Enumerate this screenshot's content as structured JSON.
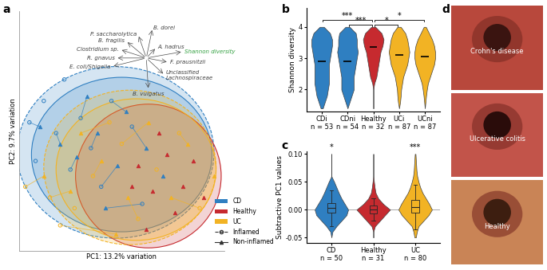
{
  "chart_data": [
    {
      "type": "scatter",
      "panel": "a",
      "x_label": "PC1: 13.2% variation",
      "y_label": "PC2: 9.7% variation",
      "xlim": [
        0,
        100
      ],
      "ylim": [
        0,
        112
      ],
      "xticks": [],
      "yticks": [],
      "tick_labels": false,
      "legend": "lower right",
      "states": [
        {
          "name": "Inflamed",
          "line_style": "dashed",
          "marker": "open circle"
        },
        {
          "name": "Non-inflamed",
          "line_style": "solid",
          "marker": "triangle"
        }
      ],
      "series": [
        {
          "name": "CD",
          "color": "#2f7fc1",
          "points": {
            "Inflamed": [
              [
                5,
                60
              ],
              [
                8,
                42
              ],
              [
                12,
                70
              ],
              [
                18,
                55
              ],
              [
                25,
                38
              ],
              [
                30,
                62
              ],
              [
                35,
                48
              ],
              [
                40,
                30
              ],
              [
                22,
                80
              ],
              [
                45,
                70
              ],
              [
                55,
                58
              ],
              [
                60,
                22
              ]
            ],
            "Non-inflamed": [
              [
                10,
                58
              ],
              [
                20,
                50
              ],
              [
                28,
                44
              ],
              [
                38,
                55
              ],
              [
                48,
                40
              ],
              [
                52,
                65
              ],
              [
                62,
                48
              ],
              [
                70,
                35
              ],
              [
                42,
                20
              ],
              [
                33,
                72
              ]
            ]
          },
          "links": [
            [
              0,
              0
            ],
            [
              3,
              1
            ],
            [
              4,
              2
            ],
            [
              6,
              3
            ],
            [
              7,
              4
            ],
            [
              9,
              5
            ],
            [
              10,
              6
            ],
            [
              11,
              8
            ],
            [
              5,
              9
            ]
          ],
          "ellipses": [
            {
              "state": "Inflamed",
              "center": [
                47,
                46
              ],
              "width": 96,
              "height": 80
            },
            {
              "state": "Non-inflamed",
              "center": [
                50,
                45
              ],
              "width": 88,
              "height": 72
            }
          ]
        },
        {
          "name": "Healthy",
          "color": "#c62a2f",
          "points": {
            "Non-inflamed": [
              [
                58,
                40
              ],
              [
                65,
                28
              ],
              [
                72,
                45
              ],
              [
                80,
                30
              ],
              [
                68,
                55
              ],
              [
                76,
                18
              ],
              [
                85,
                42
              ],
              [
                62,
                10
              ],
              [
                90,
                25
              ],
              [
                55,
                30
              ]
            ]
          },
          "ellipses": [
            {
              "state": "Non-inflamed",
              "center": [
                63,
                35
              ],
              "width": 71,
              "height": 67
            }
          ]
        },
        {
          "name": "UC",
          "color": "#f2b324",
          "points": {
            "Inflamed": [
              [
                3,
                30
              ],
              [
                15,
                25
              ],
              [
                27,
                20
              ],
              [
                36,
                35
              ],
              [
                50,
                50
              ],
              [
                58,
                15
              ],
              [
                67,
                38
              ],
              [
                78,
                55
              ],
              [
                88,
                20
              ],
              [
                44,
                60
              ],
              [
                20,
                12
              ]
            ],
            "Non-inflamed": [
              [
                12,
                35
              ],
              [
                25,
                28
              ],
              [
                40,
                42
              ],
              [
                53,
                25
              ],
              [
                63,
                60
              ],
              [
                74,
                25
              ],
              [
                82,
                50
              ],
              [
                47,
                8
              ],
              [
                95,
                35
              ],
              [
                30,
                55
              ]
            ]
          },
          "links": [
            [
              0,
              0
            ],
            [
              1,
              1
            ],
            [
              3,
              2
            ],
            [
              5,
              3
            ],
            [
              4,
              4
            ],
            [
              8,
              5
            ],
            [
              7,
              6
            ],
            [
              10,
              7
            ],
            [
              9,
              9
            ]
          ],
          "ellipses": [
            {
              "state": "Inflamed",
              "center": [
                54,
                39
              ],
              "width": 84,
              "height": 72
            },
            {
              "state": "Non-inflamed",
              "center": [
                57,
                38
              ],
              "width": 78,
              "height": 66
            }
          ]
        }
      ],
      "loading_origin": [
        62,
        90
      ],
      "loadings": [
        {
          "name": "B. dorei",
          "x": 3,
          "y": 14
        },
        {
          "name": "P. saccharolytica",
          "x": -4,
          "y": 11
        },
        {
          "name": "B. fragilis",
          "x": -10,
          "y": 8
        },
        {
          "name": "Clostridium sp.",
          "x": -13,
          "y": 4
        },
        {
          "name": "R. gnavus",
          "x": -15,
          "y": 0
        },
        {
          "name": "E. coli/Shigella",
          "x": -17,
          "y": -4
        },
        {
          "name": "A. hadrus",
          "x": 5,
          "y": 5
        },
        {
          "name": "Shannon diversity",
          "x": 18,
          "y": 3,
          "color": "#2e9e3c"
        },
        {
          "name": "F. prausnitzii",
          "x": 11,
          "y": -2
        },
        {
          "name": "Unclassified\nLachnospiraceae",
          "x": 9,
          "y": -8
        },
        {
          "name": "B. vulgatus",
          "x": 1,
          "y": -15
        }
      ]
    },
    {
      "type": "violin",
      "panel": "b",
      "y_label": "Shannon diversity",
      "categories": [
        "CDi\nn = 53",
        "CDni\nn = 54",
        "Healthy\nn = 32",
        "UCi\nn = 87",
        "UCni\nn = 87"
      ],
      "colors": [
        "#2f7fc1",
        "#2f7fc1",
        "#c62a2f",
        "#f2b324",
        "#f2b324"
      ],
      "ylim": [
        1.3,
        4.6
      ],
      "yticks": [
        2,
        3,
        4
      ],
      "density_y": [
        1.4,
        1.6,
        1.8,
        2.0,
        2.2,
        2.4,
        2.6,
        2.8,
        3.0,
        3.2,
        3.4,
        3.6,
        3.8,
        4.0
      ],
      "density": [
        [
          0.05,
          0.15,
          0.25,
          0.3,
          0.35,
          0.35,
          0.35,
          0.35,
          0.4,
          0.45,
          0.5,
          0.5,
          0.4,
          0.1
        ],
        [
          0,
          0.1,
          0.2,
          0.3,
          0.3,
          0.3,
          0.35,
          0.4,
          0.45,
          0.5,
          0.45,
          0.45,
          0.4,
          0.1
        ],
        [
          0,
          0,
          0,
          0,
          0.05,
          0.15,
          0.2,
          0.25,
          0.3,
          0.35,
          0.45,
          0.5,
          0.4,
          0.1
        ],
        [
          0,
          0.05,
          0.08,
          0.1,
          0.15,
          0.2,
          0.3,
          0.4,
          0.45,
          0.5,
          0.45,
          0.4,
          0.3,
          0.08
        ],
        [
          0,
          0.03,
          0.06,
          0.1,
          0.15,
          0.25,
          0.35,
          0.45,
          0.5,
          0.5,
          0.45,
          0.35,
          0.2,
          0.05
        ]
      ],
      "medians": [
        2.9,
        2.9,
        3.35,
        3.1,
        3.05
      ],
      "comparisons": [
        {
          "from": 1,
          "to": 2,
          "label": "***"
        },
        {
          "from": 0,
          "to": 2,
          "label": "***"
        },
        {
          "from": 2,
          "to": 3,
          "label": "*"
        },
        {
          "from": 2,
          "to": 4,
          "label": "*"
        }
      ]
    },
    {
      "type": "violin",
      "panel": "c",
      "y_label": "Subtractive PC1 values",
      "categories": [
        "CD\nn = 50",
        "Healthy\nn = 31",
        "UC\nn = 80"
      ],
      "colors": [
        "#2f7fc1",
        "#c62a2f",
        "#f2b324"
      ],
      "ylim": [
        -0.06,
        0.105
      ],
      "yticks": [
        -0.05,
        {
          "value": 0,
          "label": "0.00"
        },
        0.05,
        {
          "value": 0.1,
          "label": "0.10"
        }
      ],
      "reference_y": 0,
      "density_y": [
        -0.05,
        -0.04,
        -0.03,
        -0.02,
        -0.01,
        0.0,
        0.01,
        0.02,
        0.03,
        0.04,
        0.05,
        0.06,
        0.07,
        0.08,
        0.09,
        0.1
      ],
      "density": [
        [
          0,
          0.03,
          0.15,
          0.3,
          0.45,
          0.5,
          0.4,
          0.3,
          0.22,
          0.15,
          0.08,
          0,
          0,
          0,
          0,
          0
        ],
        [
          0,
          0,
          0.05,
          0.2,
          0.35,
          0.5,
          0.3,
          0.15,
          0.07,
          0.04,
          0.02,
          0,
          0,
          0,
          0,
          0
        ],
        [
          0.02,
          0.05,
          0.1,
          0.25,
          0.4,
          0.5,
          0.42,
          0.32,
          0.22,
          0.15,
          0.1,
          0.06,
          0.04,
          0.03,
          0.02,
          0.01
        ]
      ],
      "boxes": [
        {
          "q1": -0.005,
          "median": 0.003,
          "q3": 0.012,
          "whislo": -0.03,
          "whishi": 0.035
        },
        {
          "q1": -0.007,
          "median": 0.0,
          "q3": 0.007,
          "whislo": -0.02,
          "whishi": 0.02
        },
        {
          "q1": -0.005,
          "median": 0.005,
          "q3": 0.018,
          "whislo": -0.035,
          "whishi": 0.045
        }
      ],
      "significance": [
        "*",
        null,
        "***"
      ]
    },
    {
      "type": "image",
      "panel": "d",
      "labels": [
        "Crohn's disease",
        "Ulcerative colitis",
        "Healthy"
      ]
    }
  ]
}
